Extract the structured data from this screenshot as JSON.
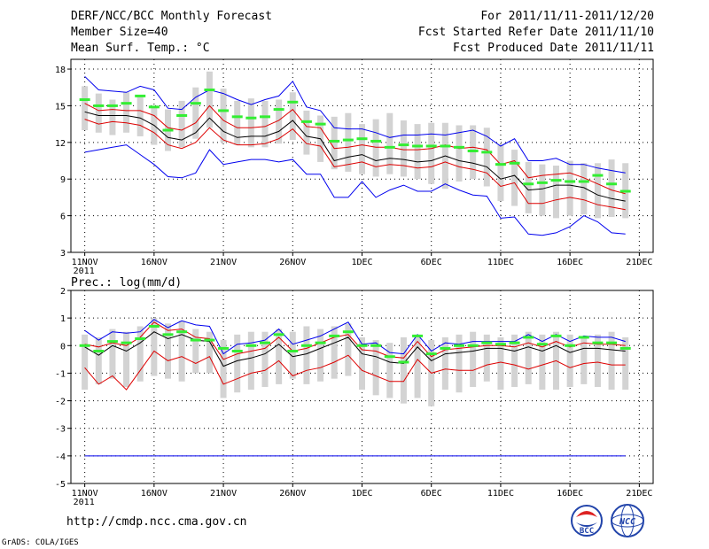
{
  "header": {
    "title": "DERF/NCC/BCC Monthly Forecast",
    "member": "Member Size=40",
    "variable": "Mean Surf. Temp.: °C",
    "period": "For 2011/11/11-2011/12/20",
    "started": "Fcst Started Refer Date 2011/11/10",
    "produced": "Fcst Produced Date 2011/11/11"
  },
  "footer": {
    "url": "http://cmdp.ncc.cma.gov.cn",
    "grads": "GrADS: COLA/IGES",
    "logo_bcc": "BCC",
    "logo_ncc": "NCC"
  },
  "colors": {
    "bar": "#d3d3d3",
    "green": "#33ee33",
    "blue": "#0000ee",
    "red": "#dd0000",
    "black": "#000000"
  },
  "chart_data": [
    {
      "type": "line",
      "title": "Mean Surf. Temp.: °C",
      "x_tick_labels": [
        "11NOV",
        "16NOV",
        "21NOV",
        "26NOV",
        "1DEC",
        "6DEC",
        "11DEC",
        "16DEC",
        "21DEC"
      ],
      "x_tick_days": [
        1,
        6,
        11,
        16,
        21,
        26,
        31,
        36,
        41
      ],
      "x_year_label": "2011",
      "xlim": [
        0,
        42
      ],
      "ylim": [
        3,
        18.8
      ],
      "y_ticks": [
        3,
        6,
        9,
        12,
        15,
        18
      ],
      "days": [
        1,
        2,
        3,
        4,
        5,
        6,
        7,
        8,
        9,
        10,
        11,
        12,
        13,
        14,
        15,
        16,
        17,
        18,
        19,
        20,
        21,
        22,
        23,
        24,
        25,
        26,
        27,
        28,
        29,
        30,
        31,
        32,
        33,
        34,
        35,
        36,
        37,
        38,
        39,
        40
      ],
      "bar_low": [
        13.0,
        12.8,
        12.6,
        12.8,
        12.5,
        11.8,
        11.3,
        11.6,
        12.3,
        13.2,
        12.0,
        11.8,
        11.6,
        11.6,
        11.9,
        12.2,
        11.0,
        10.4,
        9.8,
        9.6,
        9.4,
        9.2,
        9.4,
        9.2,
        9.0,
        8.6,
        8.2,
        8.8,
        9.0,
        8.4,
        7.2,
        6.8,
        6.2,
        6.0,
        5.8,
        6.0,
        6.1,
        5.8,
        5.9,
        5.8
      ],
      "bar_high": [
        16.6,
        16.0,
        15.5,
        16.1,
        15.9,
        15.0,
        14.7,
        15.4,
        16.5,
        17.8,
        16.4,
        15.4,
        15.6,
        15.4,
        15.5,
        16.1,
        14.6,
        14.2,
        14.1,
        14.4,
        13.5,
        13.9,
        14.4,
        13.8,
        13.5,
        13.6,
        13.6,
        13.4,
        13.4,
        13.2,
        11.8,
        11.4,
        10.4,
        10.2,
        10.1,
        10.5,
        10.3,
        10.3,
        10.6,
        10.3
      ],
      "series": [
        {
          "name": "ensemble_max",
          "color": "blue",
          "values": [
            17.4,
            16.3,
            16.2,
            16.1,
            16.6,
            16.3,
            14.8,
            14.7,
            15.7,
            16.3,
            16.0,
            15.5,
            15.1,
            15.5,
            15.8,
            17.0,
            14.9,
            14.6,
            13.2,
            13.1,
            13.1,
            12.8,
            12.4,
            12.6,
            12.6,
            12.7,
            12.6,
            12.8,
            13.0,
            12.5,
            11.7,
            12.3,
            10.5,
            10.5,
            10.7,
            10.2,
            10.2,
            9.9,
            9.7,
            9.5
          ]
        },
        {
          "name": "upper_red",
          "color": "red",
          "values": [
            15.2,
            14.6,
            14.7,
            14.6,
            14.6,
            14.2,
            13.2,
            13.0,
            13.6,
            15.0,
            13.8,
            13.2,
            13.2,
            13.3,
            13.8,
            14.7,
            13.3,
            13.2,
            11.5,
            11.6,
            11.8,
            11.6,
            11.6,
            11.4,
            11.4,
            11.5,
            11.8,
            11.5,
            11.6,
            11.4,
            10.2,
            10.5,
            9.1,
            9.3,
            9.4,
            9.5,
            9.1,
            8.6,
            8.1,
            7.8
          ]
        },
        {
          "name": "ensemble_mean",
          "color": "black",
          "values": [
            14.5,
            14.2,
            14.2,
            14.2,
            14.0,
            13.4,
            12.4,
            12.2,
            12.8,
            14.0,
            12.9,
            12.4,
            12.5,
            12.5,
            12.9,
            13.8,
            12.5,
            12.3,
            10.5,
            10.8,
            11.0,
            10.5,
            10.7,
            10.6,
            10.4,
            10.5,
            10.9,
            10.5,
            10.3,
            10.0,
            9.0,
            9.3,
            8.1,
            8.2,
            8.5,
            8.5,
            8.3,
            7.7,
            7.4,
            7.2
          ]
        },
        {
          "name": "lower_red",
          "color": "red",
          "values": [
            13.9,
            13.5,
            13.7,
            13.6,
            13.4,
            12.8,
            11.8,
            11.5,
            12.0,
            13.2,
            12.2,
            11.8,
            11.8,
            11.9,
            12.3,
            13.1,
            11.9,
            11.7,
            10.0,
            10.2,
            10.4,
            10.0,
            10.2,
            10.1,
            9.9,
            10.0,
            10.4,
            10.0,
            9.8,
            9.5,
            8.4,
            8.7,
            7.0,
            7.0,
            7.3,
            7.5,
            7.3,
            6.9,
            6.7,
            6.5
          ]
        },
        {
          "name": "ensemble_min",
          "color": "blue",
          "values": [
            11.2,
            11.4,
            11.6,
            11.8,
            11.0,
            10.2,
            9.2,
            9.1,
            9.5,
            11.4,
            10.2,
            10.4,
            10.6,
            10.6,
            10.4,
            10.6,
            9.4,
            9.4,
            7.5,
            7.5,
            8.8,
            7.5,
            8.1,
            8.5,
            8.0,
            8.0,
            8.6,
            8.1,
            7.7,
            7.6,
            5.8,
            5.9,
            4.5,
            4.4,
            4.6,
            5.1,
            6.0,
            5.5,
            4.6,
            4.5
          ]
        }
      ],
      "green_markers": [
        15.5,
        15.0,
        15.0,
        15.2,
        15.8,
        14.9,
        13.0,
        14.2,
        15.2,
        16.3,
        14.6,
        14.1,
        14.0,
        14.1,
        14.7,
        15.3,
        13.7,
        13.5,
        12.1,
        12.2,
        12.3,
        12.1,
        11.6,
        11.8,
        11.7,
        11.7,
        11.7,
        11.6,
        11.3,
        11.2,
        10.2,
        10.3,
        8.6,
        8.7,
        8.9,
        8.8,
        8.8,
        9.3,
        8.6,
        8.0
      ]
    },
    {
      "type": "line",
      "title": "Prec.: log(mm/d)",
      "x_tick_labels": [
        "11NOV",
        "16NOV",
        "21NOV",
        "26NOV",
        "1DEC",
        "6DEC",
        "11DEC",
        "16DEC",
        "21DEC"
      ],
      "x_tick_days": [
        1,
        6,
        11,
        16,
        21,
        26,
        31,
        36,
        41
      ],
      "x_year_label": "2011",
      "xlim": [
        0,
        42
      ],
      "ylim": [
        -5,
        2
      ],
      "y_ticks": [
        -5,
        -4,
        -3,
        -2,
        -1,
        0,
        1,
        2
      ],
      "days": [
        1,
        2,
        3,
        4,
        5,
        6,
        7,
        8,
        9,
        10,
        11,
        12,
        13,
        14,
        15,
        16,
        17,
        18,
        19,
        20,
        21,
        22,
        23,
        24,
        25,
        26,
        27,
        28,
        29,
        30,
        31,
        32,
        33,
        34,
        35,
        36,
        37,
        38,
        39,
        40
      ],
      "bar_low": [
        -1.6,
        -1.4,
        -1.2,
        -1.5,
        -1.3,
        -1.1,
        -1.2,
        -1.3,
        -1.0,
        -1.0,
        -1.9,
        -1.7,
        -1.6,
        -1.5,
        -1.4,
        -1.2,
        -1.4,
        -1.3,
        -1.2,
        -1.1,
        -1.6,
        -1.8,
        -1.9,
        -2.1,
        -1.9,
        -2.2,
        -1.6,
        -1.7,
        -1.5,
        -1.3,
        -1.6,
        -1.5,
        -1.4,
        -1.6,
        -1.6,
        -1.5,
        -1.4,
        -1.5,
        -1.6,
        -1.6
      ],
      "bar_high": [
        0.4,
        0.3,
        0.6,
        0.5,
        0.7,
        1.0,
        0.8,
        0.9,
        0.6,
        0.5,
        0.2,
        0.4,
        0.5,
        0.5,
        0.6,
        0.5,
        0.7,
        0.6,
        0.7,
        0.8,
        0.3,
        0.2,
        0.1,
        0.3,
        0.4,
        0.2,
        0.3,
        0.4,
        0.5,
        0.4,
        0.3,
        0.4,
        0.5,
        0.4,
        0.5,
        0.4,
        0.3,
        0.4,
        0.5,
        0.3
      ],
      "series": [
        {
          "name": "ensemble_max",
          "color": "blue",
          "values": [
            0.55,
            0.2,
            0.5,
            0.45,
            0.5,
            0.95,
            0.65,
            0.9,
            0.75,
            0.7,
            -0.3,
            0.05,
            0.1,
            0.2,
            0.6,
            0.05,
            0.2,
            0.35,
            0.6,
            0.85,
            0.05,
            0.1,
            -0.25,
            -0.3,
            0.4,
            -0.2,
            0.1,
            0.05,
            0.15,
            0.15,
            0.15,
            0.15,
            0.4,
            0.15,
            0.4,
            0.15,
            0.35,
            0.3,
            0.3,
            0.15
          ]
        },
        {
          "name": "upper_red",
          "color": "red",
          "values": [
            0.05,
            -0.05,
            0.1,
            0.0,
            0.3,
            0.85,
            0.55,
            0.6,
            0.3,
            0.25,
            -0.5,
            -0.3,
            -0.2,
            -0.1,
            0.3,
            -0.2,
            -0.1,
            0.1,
            0.3,
            0.4,
            -0.15,
            -0.2,
            -0.4,
            -0.45,
            0.15,
            -0.4,
            -0.15,
            -0.1,
            -0.05,
            0.0,
            0.0,
            -0.05,
            0.1,
            -0.05,
            0.15,
            -0.05,
            0.1,
            0.05,
            0.05,
            0.0
          ]
        },
        {
          "name": "ensemble_mean",
          "color": "black",
          "values": [
            -0.05,
            -0.35,
            0.0,
            -0.2,
            0.1,
            0.5,
            0.25,
            0.4,
            0.2,
            0.15,
            -0.75,
            -0.55,
            -0.45,
            -0.3,
            0.05,
            -0.4,
            -0.3,
            -0.1,
            0.1,
            0.3,
            -0.3,
            -0.4,
            -0.6,
            -0.65,
            -0.05,
            -0.55,
            -0.3,
            -0.25,
            -0.2,
            -0.1,
            -0.1,
            -0.2,
            -0.05,
            -0.2,
            0.0,
            -0.25,
            -0.1,
            -0.1,
            -0.15,
            -0.2
          ]
        },
        {
          "name": "lower_red",
          "color": "red",
          "values": [
            -0.8,
            -1.4,
            -1.1,
            -1.6,
            -0.9,
            -0.2,
            -0.55,
            -0.4,
            -0.65,
            -0.4,
            -1.4,
            -1.2,
            -1.0,
            -0.9,
            -0.55,
            -1.1,
            -0.9,
            -0.8,
            -0.6,
            -0.35,
            -0.9,
            -1.1,
            -1.3,
            -1.3,
            -0.5,
            -1.0,
            -0.85,
            -0.9,
            -0.9,
            -0.7,
            -0.6,
            -0.7,
            -0.85,
            -0.7,
            -0.55,
            -0.8,
            -0.65,
            -0.6,
            -0.7,
            -0.7
          ]
        },
        {
          "name": "ensemble_min",
          "color": "blue",
          "values": [
            -4,
            -4,
            -4,
            -4,
            -4,
            -4,
            -4,
            -4,
            -4,
            -4,
            -4,
            -4,
            -4,
            -4,
            -4,
            -4,
            -4,
            -4,
            -4,
            -4,
            -4,
            -4,
            -4,
            -4,
            -4,
            -4,
            -4,
            -4,
            -4,
            -4,
            -4,
            -4,
            -4,
            -4,
            -4,
            -4,
            -4,
            -4,
            -4,
            -4
          ]
        }
      ],
      "green_markers": [
        0.0,
        -0.2,
        0.15,
        0.1,
        0.25,
        0.7,
        0.4,
        0.5,
        0.2,
        0.2,
        -0.1,
        -0.2,
        0.0,
        0.1,
        0.4,
        -0.2,
        0.0,
        0.1,
        0.35,
        0.5,
        0.0,
        0.0,
        -0.4,
        -0.6,
        0.35,
        -0.3,
        -0.1,
        0.0,
        0.0,
        0.1,
        0.05,
        0.1,
        0.3,
        0.05,
        0.35,
        0.0,
        0.3,
        0.1,
        0.1,
        -0.1
      ]
    }
  ]
}
